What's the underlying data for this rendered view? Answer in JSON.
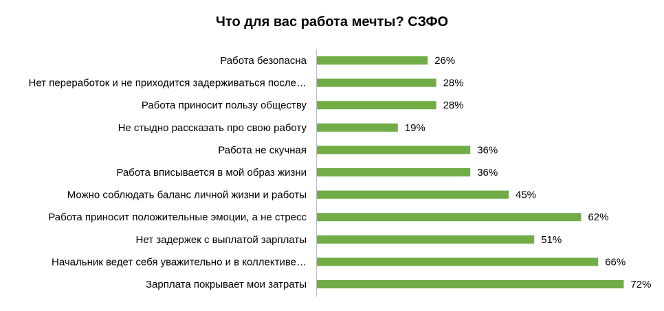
{
  "chart_data": {
    "type": "bar",
    "orientation": "horizontal",
    "title": "Что для вас работа мечты? СЗФО",
    "xlabel": "",
    "ylabel": "",
    "xlim": [
      0,
      100
    ],
    "grid": false,
    "legend": "none",
    "bar_color": "#70ad47",
    "categories": [
      "Работа безопасна",
      "Нет переработок и не приходится задерживаться после…",
      "Работа приносит пользу обществу",
      "Не стыдно рассказать про свою работу",
      "Работа не скучная",
      "Работа вписывается в мой образ жизни",
      "Можно соблюдать баланс личной жизни и работы",
      "Работа приносит положительные эмоции, а не стресс",
      "Нет задержек с выплатой зарплаты",
      "Начальник ведет себя уважительно и в коллективе…",
      "Зарплата покрывает мои затраты"
    ],
    "values": [
      26,
      28,
      28,
      19,
      36,
      36,
      45,
      62,
      51,
      66,
      72
    ],
    "value_labels": [
      "26%",
      "28%",
      "28%",
      "19%",
      "36%",
      "36%",
      "45%",
      "62%",
      "51%",
      "66%",
      "72%"
    ]
  }
}
